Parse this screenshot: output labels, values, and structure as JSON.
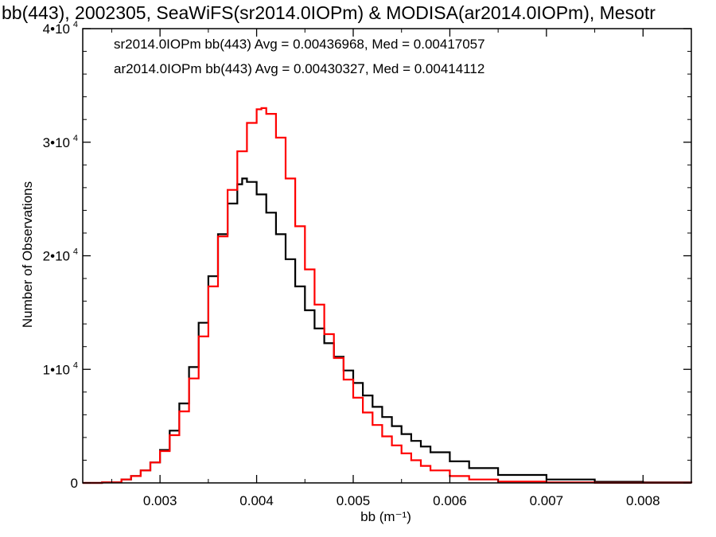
{
  "colors": {
    "series_1": "#000000",
    "series_2": "#ff0000"
  },
  "chart_data": {
    "type": "line",
    "title": "bb(443), 2002305, SeaWiFS(sr2014.0IOPm) & MODISA(ar2014.0IOPm), Mesotr",
    "xlabel": "bb (m⁻¹)",
    "ylabel": "Number of Observations",
    "xlim": [
      0.0022,
      0.0085
    ],
    "ylim": [
      0,
      40000
    ],
    "x_ticks": [
      "0.003",
      "0.004",
      "0.005",
      "0.006",
      "0.007",
      "0.008"
    ],
    "y_ticks": [
      {
        "value": 0,
        "label": "0",
        "exp": ""
      },
      {
        "value": 10000,
        "label": "1•10",
        "exp": "4"
      },
      {
        "value": 20000,
        "label": "2•10",
        "exp": "4"
      },
      {
        "value": 30000,
        "label": "3•10",
        "exp": "4"
      },
      {
        "value": 40000,
        "label": "4•10",
        "exp": "4"
      }
    ],
    "grid": false,
    "step": true,
    "annotations": [
      "sr2014.0IOPm bb(443) Avg = 0.00436968, Med = 0.00417057",
      "ar2014.0IOPm bb(443) Avg = 0.00430327, Med = 0.00414112"
    ],
    "series": [
      {
        "color": "#000000",
        "x": [
          0.0022,
          0.0024,
          0.0026,
          0.0027,
          0.0028,
          0.0029,
          0.003,
          0.0031,
          0.0032,
          0.0033,
          0.0034,
          0.0035,
          0.0036,
          0.0037,
          0.0038,
          0.00385,
          0.0039,
          0.004,
          0.0041,
          0.0042,
          0.0043,
          0.0044,
          0.0045,
          0.0046,
          0.0047,
          0.0048,
          0.0049,
          0.005,
          0.0051,
          0.0052,
          0.0053,
          0.0054,
          0.0055,
          0.0056,
          0.0057,
          0.0058,
          0.006,
          0.0062,
          0.0065,
          0.007,
          0.0075,
          0.008,
          0.0085
        ],
        "y": [
          0,
          50,
          300,
          600,
          1100,
          1800,
          2900,
          4600,
          7000,
          10200,
          14100,
          18200,
          21900,
          24600,
          26300,
          26800,
          26500,
          25400,
          23800,
          21900,
          19700,
          17300,
          15200,
          13600,
          12300,
          11100,
          9900,
          8800,
          7700,
          6700,
          5800,
          5000,
          4300,
          3700,
          3200,
          2700,
          1900,
          1300,
          700,
          300,
          100,
          40,
          10
        ]
      },
      {
        "color": "#ff0000",
        "x": [
          0.0022,
          0.0024,
          0.0026,
          0.0027,
          0.0028,
          0.0029,
          0.003,
          0.0031,
          0.0032,
          0.0033,
          0.0034,
          0.0035,
          0.0036,
          0.0037,
          0.0038,
          0.0039,
          0.004,
          0.00405,
          0.0041,
          0.0042,
          0.0043,
          0.0044,
          0.0045,
          0.0046,
          0.0047,
          0.0048,
          0.0049,
          0.005,
          0.0051,
          0.0052,
          0.0053,
          0.0054,
          0.0055,
          0.0056,
          0.0057,
          0.0058,
          0.006,
          0.0062,
          0.0065,
          0.007,
          0.0075,
          0.008,
          0.0085
        ],
        "y": [
          0,
          50,
          300,
          600,
          1100,
          1800,
          2800,
          4200,
          6300,
          9200,
          12900,
          17300,
          21700,
          25800,
          29200,
          31700,
          32900,
          33000,
          32500,
          30400,
          26800,
          22600,
          18800,
          15700,
          13100,
          11000,
          9100,
          7500,
          6200,
          5100,
          4100,
          3300,
          2600,
          2000,
          1500,
          1100,
          600,
          300,
          120,
          40,
          10,
          5,
          2
        ]
      }
    ]
  }
}
